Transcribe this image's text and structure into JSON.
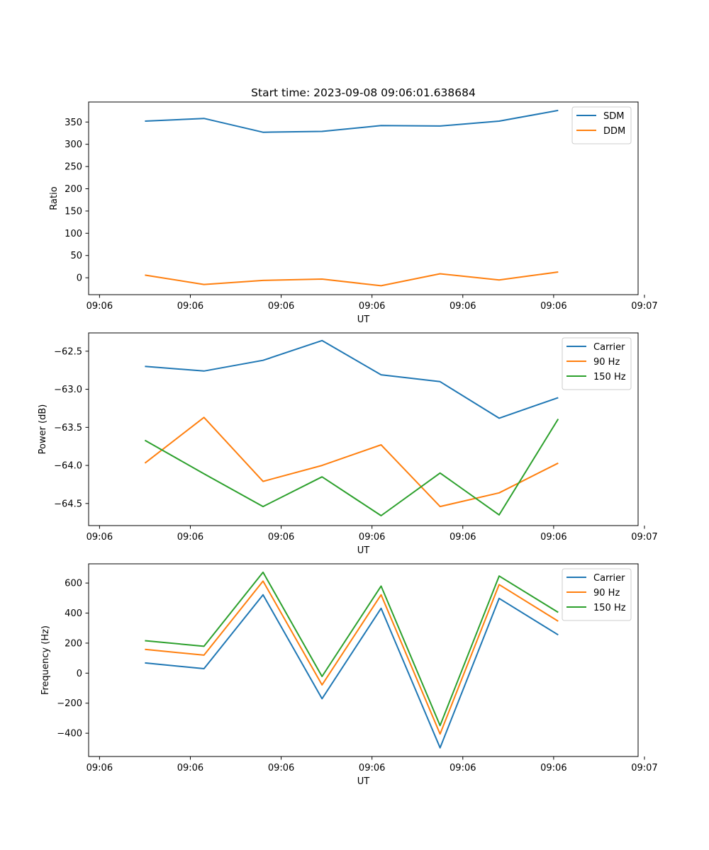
{
  "title": "Start time: 2023-09-08 09:06:01.638684",
  "colors": {
    "blue": "#1f77b4",
    "orange": "#ff7f0e",
    "green": "#2ca02c"
  },
  "chart_data": [
    {
      "type": "line",
      "title": "Start time: 2023-09-08 09:06:01.638684",
      "xlabel": "UT",
      "ylabel": "Ratio",
      "xlim": [
        -0.12,
        5.93
      ],
      "ylim": [
        -38,
        395
      ],
      "xticks": [
        0,
        1,
        2,
        3,
        4,
        5,
        6
      ],
      "xtick_labels": [
        "09:06",
        "09:06",
        "09:06",
        "09:06",
        "09:06",
        "09:06",
        "09:07"
      ],
      "yticks": [
        0,
        50,
        100,
        150,
        200,
        250,
        300,
        350
      ],
      "ytick_labels": [
        "0",
        "50",
        "100",
        "150",
        "200",
        "250",
        "300",
        "350"
      ],
      "legend_loc": "upper right",
      "x": [
        0.5,
        1.15,
        1.8,
        2.45,
        3.1,
        3.75,
        4.4,
        5.05
      ],
      "series": [
        {
          "name": "SDM",
          "color": "#1f77b4",
          "values": [
            352,
            358,
            327,
            329,
            342,
            341,
            352,
            376
          ]
        },
        {
          "name": "DDM",
          "color": "#ff7f0e",
          "values": [
            6,
            -15,
            -6,
            -3,
            -18,
            9,
            -5,
            13
          ]
        }
      ]
    },
    {
      "type": "line",
      "title": "",
      "xlabel": "UT",
      "ylabel": "Power (dB)",
      "xlim": [
        -0.12,
        5.93
      ],
      "ylim": [
        -64.79,
        -62.26
      ],
      "xticks": [
        0,
        1,
        2,
        3,
        4,
        5,
        6
      ],
      "xtick_labels": [
        "09:06",
        "09:06",
        "09:06",
        "09:06",
        "09:06",
        "09:06",
        "09:07"
      ],
      "yticks": [
        -64.5,
        -64.0,
        -63.5,
        -63.0,
        -62.5
      ],
      "ytick_labels": [
        "−64.5",
        "−64.0",
        "−63.5",
        "−63.0",
        "−62.5"
      ],
      "legend_loc": "upper right",
      "x": [
        0.5,
        1.15,
        1.8,
        2.45,
        3.1,
        3.75,
        4.4,
        5.05
      ],
      "series": [
        {
          "name": "Carrier",
          "color": "#1f77b4",
          "values": [
            -62.7,
            -62.76,
            -62.62,
            -62.36,
            -62.81,
            -62.9,
            -63.38,
            -63.11
          ]
        },
        {
          "name": "90 Hz",
          "color": "#ff7f0e",
          "values": [
            -63.97,
            -63.37,
            -64.21,
            -64.0,
            -63.73,
            -64.54,
            -64.36,
            -63.97
          ]
        },
        {
          "name": "150 Hz",
          "color": "#2ca02c",
          "values": [
            -63.67,
            -64.11,
            -64.54,
            -64.15,
            -64.66,
            -64.1,
            -64.65,
            -63.39
          ]
        }
      ]
    },
    {
      "type": "line",
      "title": "",
      "xlabel": "UT",
      "ylabel": "Frequency (Hz)",
      "xlim": [
        -0.12,
        5.93
      ],
      "ylim": [
        -555,
        728
      ],
      "xticks": [
        0,
        1,
        2,
        3,
        4,
        5,
        6
      ],
      "xtick_labels": [
        "09:06",
        "09:06",
        "09:06",
        "09:06",
        "09:06",
        "09:06",
        "09:07"
      ],
      "yticks": [
        -400,
        -200,
        0,
        200,
        400,
        600
      ],
      "ytick_labels": [
        "−400",
        "−200",
        "0",
        "200",
        "400",
        "600"
      ],
      "legend_loc": "upper right",
      "x": [
        0.5,
        1.15,
        1.8,
        2.45,
        3.1,
        3.75,
        4.4,
        5.05
      ],
      "series": [
        {
          "name": "Carrier",
          "color": "#1f77b4",
          "values": [
            68,
            30,
            522,
            -170,
            432,
            -497,
            498,
            255
          ]
        },
        {
          "name": "90 Hz",
          "color": "#ff7f0e",
          "values": [
            158,
            120,
            613,
            -78,
            522,
            -405,
            590,
            346
          ]
        },
        {
          "name": "150 Hz",
          "color": "#2ca02c",
          "values": [
            216,
            179,
            672,
            -22,
            580,
            -349,
            647,
            405
          ]
        }
      ]
    }
  ]
}
